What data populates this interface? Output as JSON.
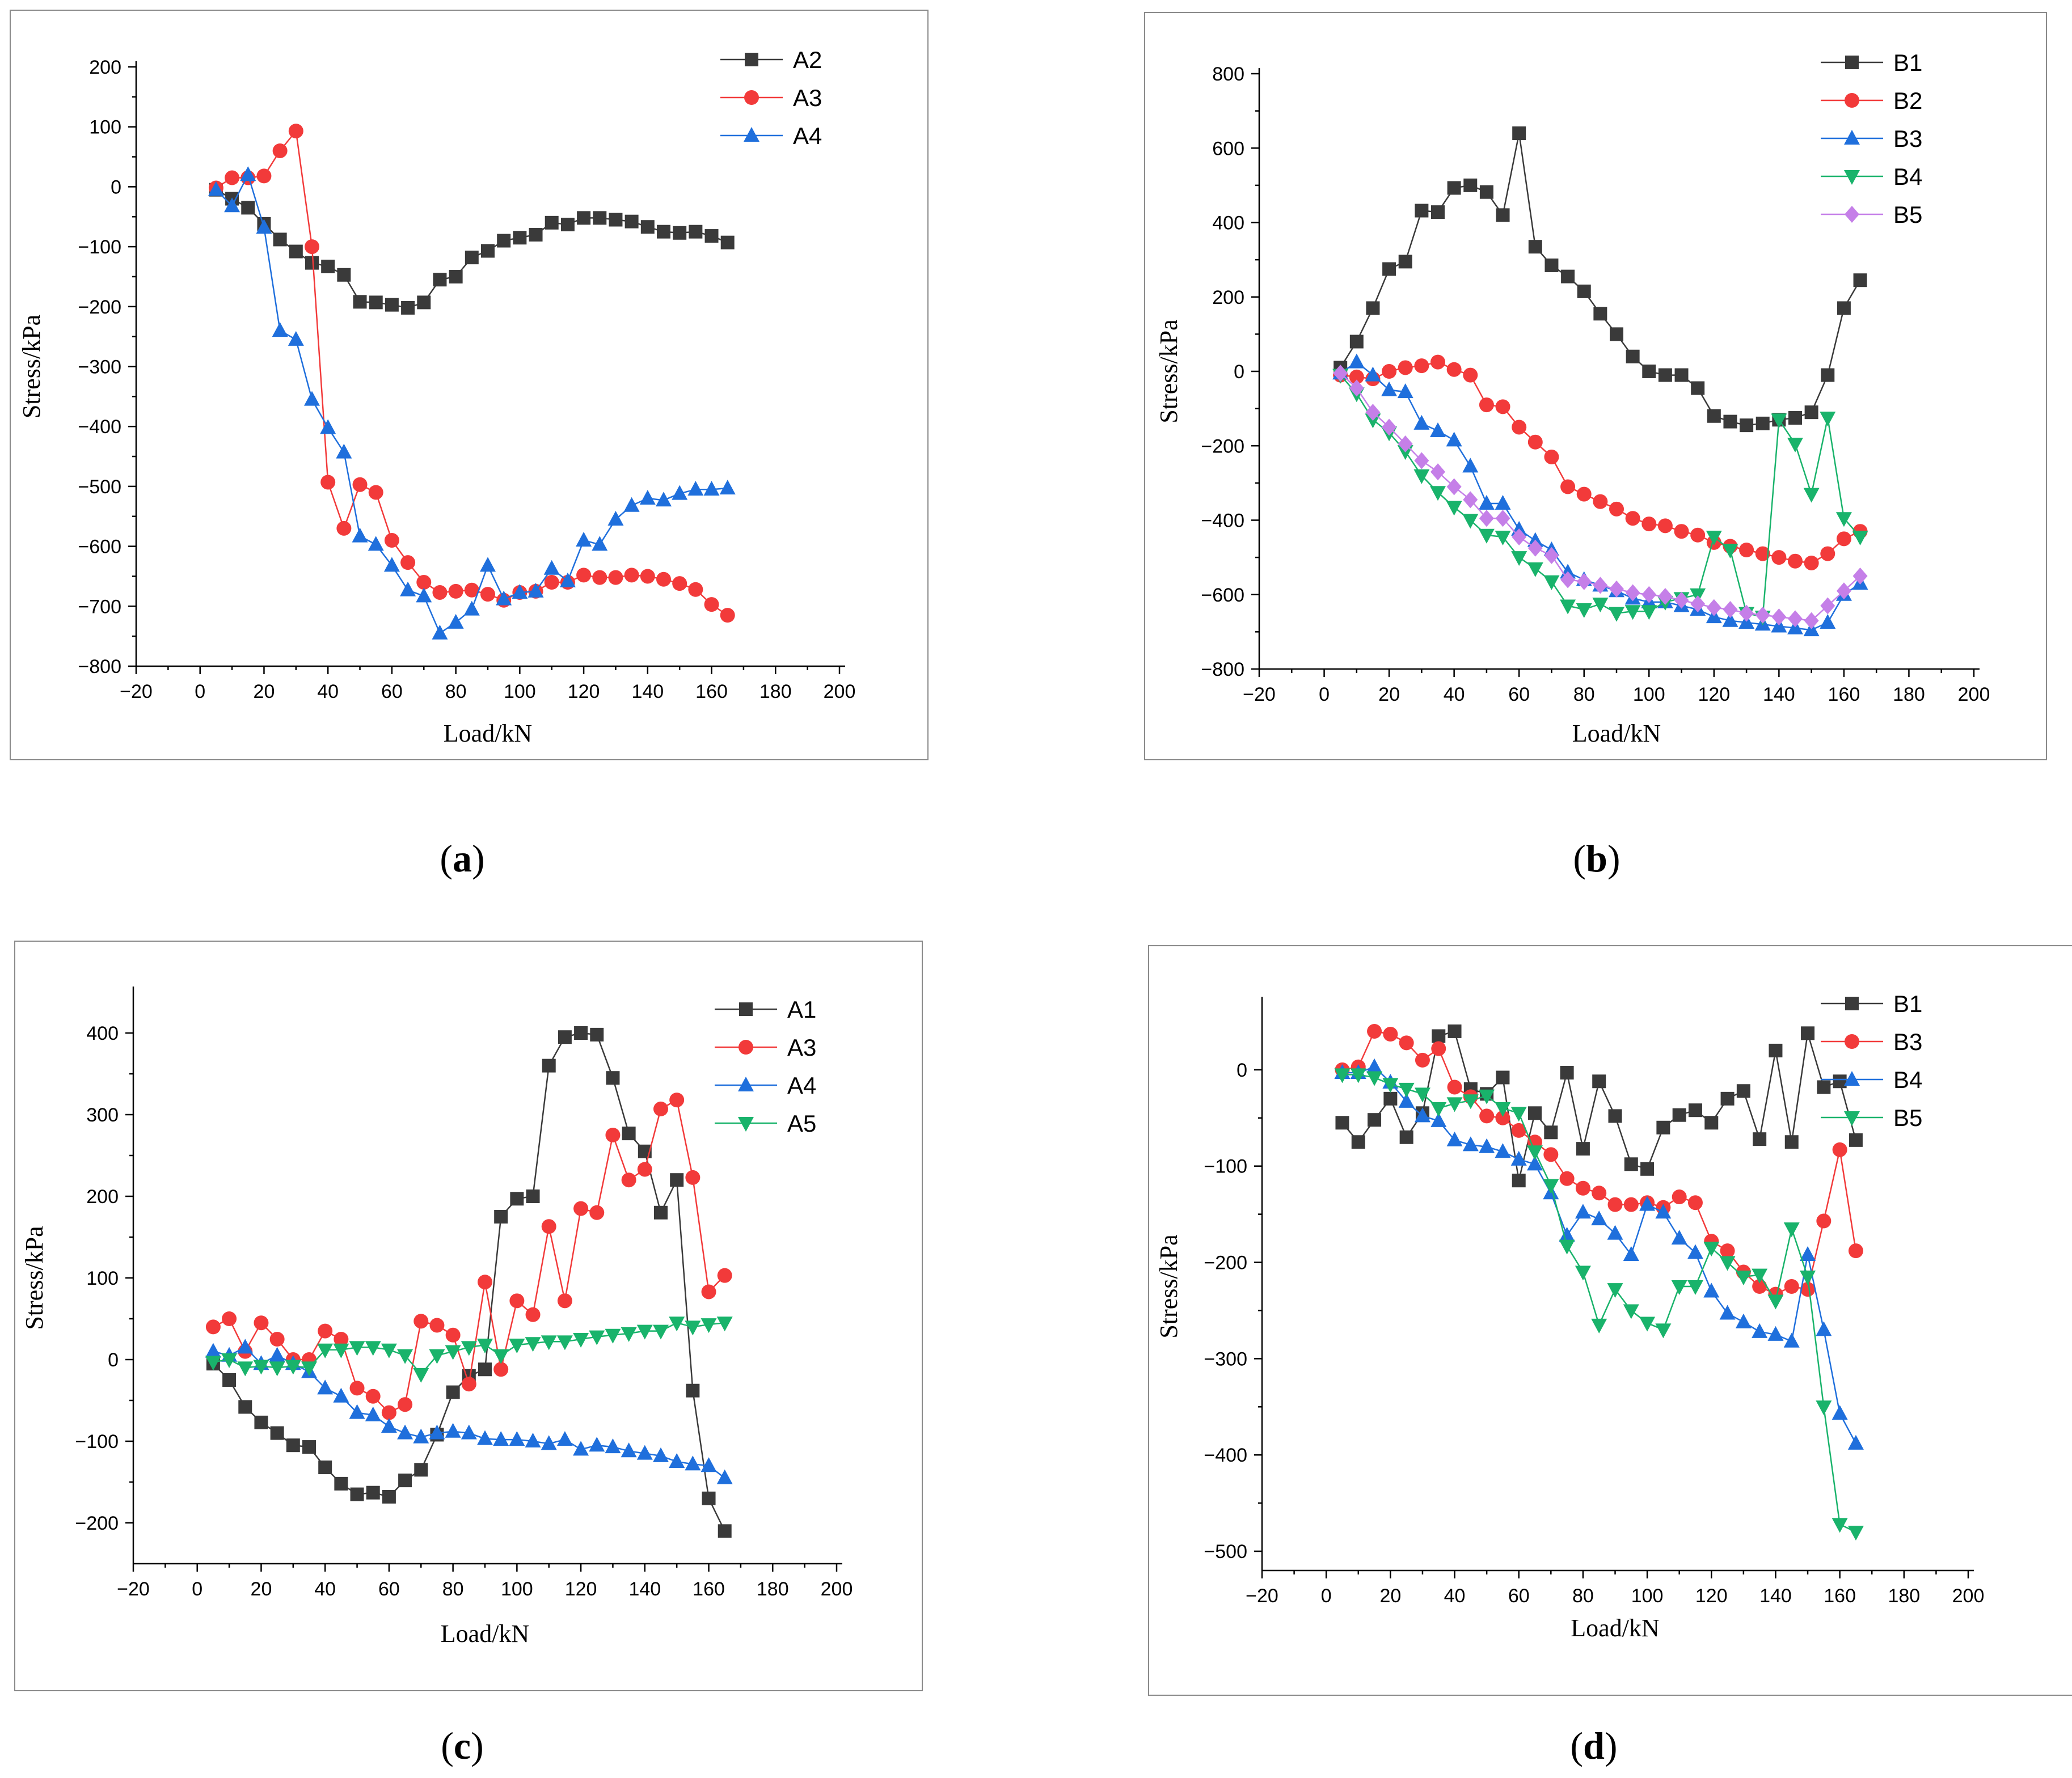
{
  "panels": [
    {
      "id": "a",
      "caption": "a",
      "chart_data": {
        "type": "line",
        "xlabel": "Load/kN",
        "ylabel": "Stress/kPa",
        "xlim": [
          -20,
          200
        ],
        "ylim": [
          -800,
          200
        ],
        "xticks": [
          -20,
          0,
          20,
          40,
          60,
          80,
          100,
          120,
          140,
          160,
          180,
          200
        ],
        "yticks": [
          -800,
          -700,
          -600,
          -500,
          -400,
          -300,
          -200,
          -100,
          0,
          100,
          200
        ],
        "legend_position": "top-right",
        "x": [
          5,
          10,
          15,
          20,
          25,
          30,
          35,
          40,
          45,
          50,
          55,
          60,
          65,
          70,
          75,
          80,
          85,
          90,
          95,
          100,
          105,
          110,
          115,
          120,
          125,
          130,
          135,
          140,
          145,
          150,
          155,
          160,
          165
        ],
        "series": [
          {
            "name": "A2",
            "color": "#3a3a3a",
            "marker": "square",
            "values": [
              -5,
              -20,
              -35,
              -62,
              -88,
              -108,
              -127,
              -133,
              -147,
              -192,
              -193,
              -197,
              -202,
              -193,
              -155,
              -150,
              -118,
              -107,
              -90,
              -85,
              -80,
              -60,
              -63,
              -52,
              -52,
              -55,
              -58,
              -67,
              -75,
              -77,
              -75,
              -82,
              -93
            ]
          },
          {
            "name": "A3",
            "color": "#f23a3a",
            "marker": "circle",
            "values": [
              -2,
              15,
              15,
              18,
              60,
              93,
              -100,
              -493,
              -570,
              -497,
              -510,
              -590,
              -627,
              -660,
              -677,
              -675,
              -673,
              -680,
              -690,
              -677,
              -675,
              -660,
              -660,
              -648,
              -652,
              -652,
              -648,
              -650,
              -655,
              -662,
              -672,
              -697,
              -715
            ]
          },
          {
            "name": "A4",
            "color": "#1f6fdc",
            "marker": "triangle-up",
            "values": [
              -5,
              -32,
              20,
              -68,
              -240,
              -255,
              -355,
              -402,
              -443,
              -583,
              -597,
              -632,
              -673,
              -683,
              -745,
              -727,
              -705,
              -632,
              -688,
              -677,
              -675,
              -637,
              -658,
              -590,
              -597,
              -555,
              -532,
              -520,
              -523,
              -512,
              -505,
              -505,
              -503
            ]
          }
        ]
      }
    },
    {
      "id": "b",
      "caption": "b",
      "chart_data": {
        "type": "line",
        "xlabel": "Load/kN",
        "ylabel": "Stress/kPa",
        "xlim": [
          -20,
          200
        ],
        "ylim": [
          -800,
          800
        ],
        "xticks": [
          -20,
          0,
          20,
          40,
          60,
          80,
          100,
          120,
          140,
          160,
          180,
          200
        ],
        "yticks": [
          -800,
          -600,
          -400,
          -200,
          0,
          200,
          400,
          600,
          800
        ],
        "legend_position": "top-right",
        "x": [
          5,
          10,
          15,
          20,
          25,
          30,
          35,
          40,
          45,
          50,
          55,
          60,
          65,
          70,
          75,
          80,
          85,
          90,
          95,
          100,
          105,
          110,
          115,
          120,
          125,
          130,
          135,
          140,
          145,
          150,
          155,
          160,
          165
        ],
        "series": [
          {
            "name": "B1",
            "color": "#3a3a3a",
            "marker": "square",
            "values": [
              10,
              80,
              170,
              275,
              295,
              432,
              428,
              493,
              500,
              482,
              420,
              640,
              335,
              285,
              255,
              215,
              155,
              100,
              40,
              0,
              -10,
              -10,
              -45,
              -120,
              -135,
              -145,
              -140,
              -130,
              -125,
              -110,
              -10,
              170,
              245
            ]
          },
          {
            "name": "B2",
            "color": "#f23a3a",
            "marker": "circle",
            "values": [
              -10,
              -15,
              -20,
              0,
              10,
              15,
              25,
              5,
              -10,
              -90,
              -95,
              -150,
              -190,
              -230,
              -310,
              -330,
              -350,
              -370,
              -395,
              -410,
              -415,
              -430,
              -440,
              -460,
              -470,
              -480,
              -490,
              -500,
              -510,
              -515,
              -490,
              -450,
              -430
            ]
          },
          {
            "name": "B3",
            "color": "#1f6fdc",
            "marker": "triangle-up",
            "values": [
              -5,
              25,
              -10,
              -50,
              -55,
              -140,
              -160,
              -185,
              -255,
              -355,
              -355,
              -425,
              -455,
              -480,
              -540,
              -560,
              -575,
              -590,
              -610,
              -620,
              -620,
              -630,
              -640,
              -660,
              -670,
              -675,
              -680,
              -685,
              -690,
              -695,
              -675,
              -600,
              -570
            ]
          },
          {
            "name": "B4",
            "color": "#19b36b",
            "marker": "triangle-down",
            "values": [
              -10,
              -60,
              -130,
              -165,
              -215,
              -280,
              -325,
              -365,
              -400,
              -440,
              -445,
              -500,
              -530,
              -565,
              -630,
              -640,
              -625,
              -650,
              -645,
              -645,
              -620,
              -610,
              -600,
              -445,
              -480,
              -650,
              -660,
              -130,
              -195,
              -330,
              -125,
              -395,
              -445
            ]
          },
          {
            "name": "B5",
            "color": "#c57fe8",
            "marker": "diamond",
            "values": [
              -5,
              -45,
              -110,
              -150,
              -195,
              -240,
              -270,
              -310,
              -345,
              -395,
              -395,
              -445,
              -475,
              -495,
              -560,
              -565,
              -575,
              -585,
              -595,
              -600,
              -605,
              -615,
              -625,
              -635,
              -640,
              -650,
              -655,
              -660,
              -665,
              -670,
              -630,
              -590,
              -550
            ]
          }
        ]
      }
    },
    {
      "id": "c",
      "caption": "c",
      "chart_data": {
        "type": "line",
        "xlabel": "Load/kN",
        "ylabel": "Stress/kPa",
        "xlim": [
          -20,
          200
        ],
        "ylim": [
          -250,
          450
        ],
        "xticks": [
          -20,
          0,
          20,
          40,
          60,
          80,
          100,
          120,
          140,
          160,
          180,
          200
        ],
        "yticks": [
          -200,
          -100,
          0,
          100,
          200,
          300,
          400
        ],
        "legend_position": "top-right",
        "x": [
          5,
          10,
          15,
          20,
          25,
          30,
          35,
          40,
          45,
          50,
          55,
          60,
          65,
          70,
          75,
          80,
          85,
          90,
          95,
          100,
          105,
          110,
          115,
          120,
          125,
          130,
          135,
          140,
          145,
          150,
          155,
          160,
          165
        ],
        "series": [
          {
            "name": "A1",
            "color": "#3a3a3a",
            "marker": "square",
            "values": [
              -5,
              -25,
              -58,
              -77,
              -90,
              -105,
              -107,
              -132,
              -152,
              -165,
              -163,
              -168,
              -148,
              -135,
              -92,
              -40,
              -20,
              -12,
              175,
              197,
              200,
              360,
              395,
              400,
              398,
              345,
              277,
              255,
              180,
              220,
              -38,
              -170,
              -210
            ]
          },
          {
            "name": "A3",
            "color": "#f23a3a",
            "marker": "circle",
            "values": [
              40,
              50,
              10,
              45,
              25,
              0,
              0,
              35,
              25,
              -35,
              -45,
              -65,
              -55,
              47,
              42,
              30,
              -30,
              95,
              -12,
              72,
              55,
              163,
              72,
              185,
              180,
              275,
              220,
              233,
              307,
              318,
              223,
              83,
              103
            ]
          },
          {
            "name": "A4",
            "color": "#1f6fdc",
            "marker": "triangle-up",
            "values": [
              10,
              5,
              15,
              -5,
              5,
              -5,
              -15,
              -35,
              -45,
              -65,
              -68,
              -82,
              -90,
              -95,
              -90,
              -88,
              -90,
              -97,
              -98,
              -98,
              -100,
              -103,
              -98,
              -110,
              -105,
              -107,
              -112,
              -115,
              -118,
              -125,
              -128,
              -130,
              -145
            ]
          },
          {
            "name": "A5",
            "color": "#19b36b",
            "marker": "triangle-down",
            "values": [
              -3,
              0,
              -10,
              -8,
              -10,
              -8,
              -10,
              12,
              12,
              15,
              15,
              12,
              5,
              -18,
              5,
              10,
              15,
              18,
              5,
              18,
              20,
              22,
              22,
              25,
              28,
              30,
              32,
              35,
              35,
              45,
              40,
              43,
              45
            ]
          }
        ]
      }
    },
    {
      "id": "d",
      "caption": "d",
      "chart_data": {
        "type": "line",
        "xlabel": "Load/kN",
        "ylabel": "Stress/kPa",
        "xlim": [
          -20,
          200
        ],
        "ylim": [
          -520,
          70
        ],
        "xticks": [
          -20,
          0,
          20,
          40,
          60,
          80,
          100,
          120,
          140,
          160,
          180,
          200
        ],
        "yticks": [
          -500,
          -400,
          -300,
          -200,
          -100,
          0
        ],
        "legend_position": "top-right",
        "x": [
          5,
          10,
          15,
          20,
          25,
          30,
          35,
          40,
          45,
          50,
          55,
          60,
          65,
          70,
          75,
          80,
          85,
          90,
          95,
          100,
          105,
          110,
          115,
          120,
          125,
          130,
          135,
          140,
          145,
          150,
          155,
          160,
          165
        ],
        "series": [
          {
            "name": "B1",
            "color": "#3a3a3a",
            "marker": "square",
            "values": [
              -55,
              -75,
              -52,
              -30,
              -70,
              -45,
              35,
              40,
              -20,
              -25,
              -8,
              -115,
              -45,
              -65,
              -3,
              -82,
              -12,
              -48,
              -98,
              -103,
              -60,
              -47,
              -42,
              -55,
              -30,
              -22,
              -72,
              20,
              -75,
              38,
              -18,
              -12,
              -73
            ]
          },
          {
            "name": "B3",
            "color": "#f23a3a",
            "marker": "circle",
            "values": [
              0,
              3,
              40,
              37,
              28,
              10,
              22,
              -18,
              -28,
              -48,
              -50,
              -63,
              -75,
              -88,
              -113,
              -123,
              -128,
              -140,
              -140,
              -138,
              -143,
              -132,
              -138,
              -178,
              -188,
              -210,
              -225,
              -233,
              -225,
              -228,
              -157,
              -83,
              -188
            ]
          },
          {
            "name": "B4",
            "color": "#1f6fdc",
            "marker": "triangle-up",
            "values": [
              -3,
              -3,
              3,
              -13,
              -33,
              -48,
              -53,
              -73,
              -78,
              -80,
              -85,
              -93,
              -98,
              -128,
              -172,
              -148,
              -155,
              -170,
              -192,
              -140,
              -148,
              -175,
              -190,
              -230,
              -253,
              -262,
              -272,
              -275,
              -282,
              -192,
              -270,
              -357,
              -388
            ]
          },
          {
            "name": "B5",
            "color": "#19b36b",
            "marker": "triangle-down",
            "values": [
              -5,
              -5,
              -8,
              -15,
              -20,
              -25,
              -40,
              -35,
              -32,
              -27,
              -40,
              -45,
              -85,
              -120,
              -183,
              -210,
              -265,
              -228,
              -250,
              -263,
              -270,
              -225,
              -225,
              -185,
              -200,
              -215,
              -213,
              -240,
              -165,
              -215,
              -350,
              -472,
              -480
            ]
          }
        ]
      }
    }
  ]
}
